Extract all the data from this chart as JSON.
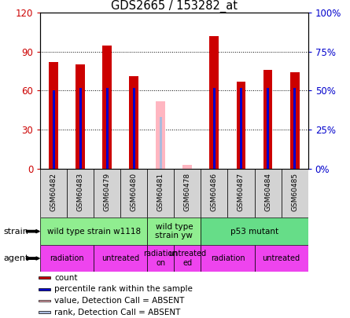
{
  "title": "GDS2665 / 153282_at",
  "samples": [
    "GSM60482",
    "GSM60483",
    "GSM60479",
    "GSM60480",
    "GSM60481",
    "GSM60478",
    "GSM60486",
    "GSM60487",
    "GSM60484",
    "GSM60485"
  ],
  "count_values": [
    82,
    80,
    95,
    71,
    null,
    null,
    102,
    67,
    76,
    74
  ],
  "rank_values": [
    60,
    62,
    62,
    62,
    null,
    null,
    62,
    62,
    62,
    62
  ],
  "absent_count": [
    null,
    null,
    null,
    null,
    52,
    3,
    null,
    null,
    null,
    null
  ],
  "absent_rank": [
    null,
    null,
    null,
    null,
    40,
    null,
    null,
    null,
    null,
    null
  ],
  "ylim_left": [
    0,
    120
  ],
  "ylim_right": [
    0,
    100
  ],
  "yticks_left": [
    0,
    30,
    60,
    90,
    120
  ],
  "yticks_right": [
    0,
    25,
    50,
    75,
    100
  ],
  "ytick_labels_right": [
    "0%",
    "25%",
    "50%",
    "75%",
    "100%"
  ],
  "strain_groups": [
    {
      "label": "wild type strain w1118",
      "start": 0,
      "end": 4,
      "color": "#90EE90"
    },
    {
      "label": "wild type\nstrain yw",
      "start": 4,
      "end": 6,
      "color": "#90EE90"
    },
    {
      "label": "p53 mutant",
      "start": 6,
      "end": 10,
      "color": "#66DD88"
    }
  ],
  "agent_groups": [
    {
      "label": "radiation",
      "start": 0,
      "end": 2
    },
    {
      "label": "untreated",
      "start": 2,
      "end": 4
    },
    {
      "label": "radiation\non",
      "start": 4,
      "end": 5
    },
    {
      "label": "untreated\ned",
      "start": 5,
      "end": 6
    },
    {
      "label": "radiation",
      "start": 6,
      "end": 8
    },
    {
      "label": "untreated",
      "start": 8,
      "end": 10
    }
  ],
  "bar_color_red": "#CC0000",
  "bar_color_blue": "#0000CC",
  "bar_color_pink": "#FFB6C1",
  "bar_color_light_blue": "#AABBDD",
  "tick_color_left": "#CC0000",
  "tick_color_right": "#0000CC",
  "agent_color": "#EE44EE",
  "grid_color": "#000000",
  "red_bar_width": 0.35,
  "blue_bar_width": 0.08,
  "pink_bar_width": 0.35,
  "lblue_bar_width": 0.08
}
